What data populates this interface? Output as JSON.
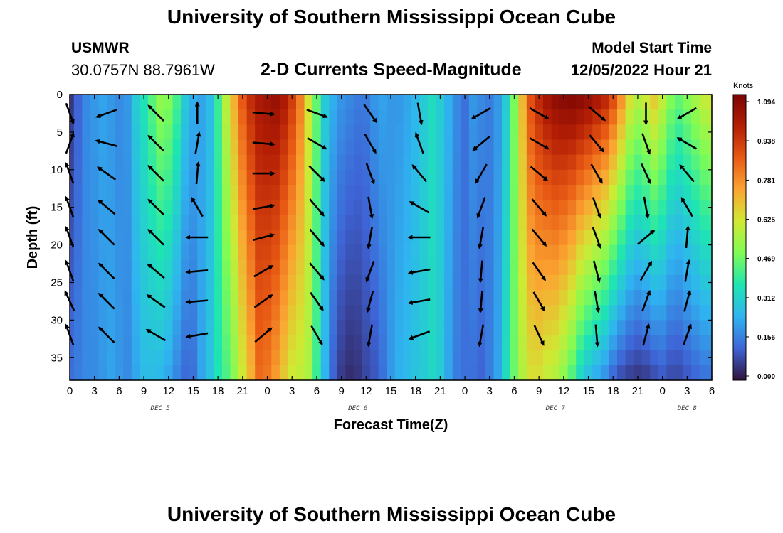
{
  "header": {
    "title": "University of Southern Mississippi Ocean Cube",
    "station_id": "USMWR",
    "station_coords": "30.0757N  88.7961W",
    "plot_title": "2-D Currents Speed-Magnitude",
    "model_start_label": "Model Start Time",
    "model_start_time": "12/05/2022 Hour 21"
  },
  "footer": {
    "title": "University of Southern Mississippi Ocean Cube"
  },
  "chart_data": {
    "type": "heatmap",
    "title": "2-D Currents Speed-Magnitude",
    "xlabel": "Forecast Time(Z)",
    "ylabel": "Depth (ft)",
    "xlim": [
      0,
      78
    ],
    "ylim": [
      38,
      0
    ],
    "x_ticks": [
      0,
      3,
      6,
      9,
      12,
      15,
      18,
      21,
      24,
      27,
      30,
      33,
      36,
      39,
      42,
      45,
      48,
      51,
      54,
      57,
      60,
      63,
      66,
      69,
      72,
      75,
      78
    ],
    "x_tick_labels": [
      "0",
      "3",
      "6",
      "9",
      "12",
      "15",
      "18",
      "21",
      "0",
      "3",
      "6",
      "9",
      "12",
      "15",
      "18",
      "21",
      "0",
      "3",
      "6",
      "9",
      "12",
      "15",
      "18",
      "21",
      "0",
      "3",
      "6"
    ],
    "y_ticks": [
      0,
      5,
      10,
      15,
      20,
      25,
      30,
      35
    ],
    "day_labels": [
      {
        "label": "DEC 5",
        "hour": 11
      },
      {
        "label": "DEC 6",
        "hour": 35
      },
      {
        "label": "DEC 7",
        "hour": 59
      },
      {
        "label": "DEC 8",
        "hour": 75
      }
    ],
    "colorbar": {
      "units": "Knots",
      "range": [
        0,
        1.094
      ],
      "ticks": [
        "1.094",
        "0.938",
        "0.781",
        "0.625",
        "0.469",
        "0.312",
        "0.156",
        "0.000"
      ],
      "tick_values": [
        1.094,
        0.938,
        0.781,
        0.625,
        0.469,
        0.312,
        0.156,
        0.0
      ],
      "colors": [
        "#30123b",
        "#3e64d6",
        "#2fb4f0",
        "#1ee5b2",
        "#7ffc55",
        "#d0e933",
        "#fba532",
        "#e85a14",
        "#b41e05",
        "#7a0403"
      ]
    },
    "speed_profile_hours": [
      0,
      1,
      2,
      3,
      4,
      5,
      6,
      7,
      8,
      9,
      10,
      11,
      12,
      13,
      14,
      15,
      16,
      17,
      18,
      19,
      20,
      21,
      22,
      23,
      24,
      25,
      26,
      27,
      28,
      29,
      30,
      31,
      32,
      33,
      34,
      35,
      36,
      37,
      38,
      39,
      40,
      41,
      42,
      43,
      44,
      45,
      46,
      47,
      48,
      49,
      50,
      51,
      52,
      53,
      54,
      55,
      56,
      57,
      58,
      59,
      60,
      61,
      62,
      63,
      64,
      65,
      66,
      67,
      68,
      69,
      70,
      71,
      72,
      73,
      74,
      75,
      76,
      77,
      78
    ],
    "speed_profile_surface": [
      0.05,
      0.12,
      0.18,
      0.2,
      0.22,
      0.2,
      0.18,
      0.2,
      0.3,
      0.36,
      0.44,
      0.52,
      0.5,
      0.42,
      0.3,
      0.24,
      0.22,
      0.26,
      0.4,
      0.58,
      0.72,
      0.86,
      0.95,
      1.0,
      1.02,
      1.04,
      1.0,
      0.92,
      0.8,
      0.62,
      0.45,
      0.3,
      0.24,
      0.2,
      0.18,
      0.16,
      0.16,
      0.2,
      0.22,
      0.2,
      0.2,
      0.22,
      0.25,
      0.3,
      0.34,
      0.3,
      0.24,
      0.18,
      0.14,
      0.2,
      0.18,
      0.16,
      0.2,
      0.3,
      0.48,
      0.7,
      0.88,
      0.96,
      1.02,
      1.06,
      1.08,
      1.09,
      1.08,
      1.06,
      1.02,
      0.98,
      0.9,
      0.78,
      0.64,
      0.58,
      0.62,
      0.68,
      0.6,
      0.5,
      0.46,
      0.5,
      0.55,
      0.6,
      0.62
    ],
    "speed_profile_bottom": [
      0.14,
      0.16,
      0.18,
      0.18,
      0.2,
      0.22,
      0.2,
      0.18,
      0.22,
      0.26,
      0.26,
      0.25,
      0.22,
      0.17,
      0.13,
      0.14,
      0.22,
      0.28,
      0.36,
      0.42,
      0.5,
      0.6,
      0.7,
      0.82,
      0.8,
      0.74,
      0.66,
      0.6,
      0.58,
      0.55,
      0.4,
      0.25,
      0.12,
      0.06,
      0.04,
      0.05,
      0.08,
      0.1,
      0.14,
      0.2,
      0.24,
      0.26,
      0.28,
      0.3,
      0.33,
      0.3,
      0.22,
      0.16,
      0.14,
      0.14,
      0.12,
      0.16,
      0.22,
      0.34,
      0.46,
      0.56,
      0.62,
      0.62,
      0.58,
      0.56,
      0.5,
      0.42,
      0.32,
      0.26,
      0.22,
      0.18,
      0.12,
      0.08,
      0.06,
      0.05,
      0.06,
      0.08,
      0.1,
      0.08,
      0.08,
      0.1,
      0.12,
      0.14,
      0.14
    ],
    "vector_columns": [
      {
        "hour": 0,
        "dirs": [
          160,
          20,
          -20,
          -20,
          -20,
          -20,
          -25,
          -20
        ]
      },
      {
        "hour": 4.5,
        "dirs": [
          -110,
          -75,
          -55,
          -50,
          -45,
          -45,
          -45,
          -45
        ]
      },
      {
        "hour": 10.5,
        "dirs": [
          -45,
          -45,
          -45,
          -45,
          -45,
          -50,
          -55,
          -60
        ]
      },
      {
        "hour": 15.5,
        "dirs": [
          0,
          10,
          5,
          -30,
          -90,
          -95,
          -95,
          -100
        ]
      },
      {
        "hour": 23.5,
        "dirs": [
          95,
          95,
          90,
          80,
          75,
          60,
          55,
          50
        ]
      },
      {
        "hour": 30,
        "dirs": [
          110,
          120,
          135,
          140,
          140,
          140,
          145,
          150
        ]
      },
      {
        "hour": 36.5,
        "dirs": [
          145,
          150,
          160,
          170,
          190,
          200,
          195,
          190
        ]
      },
      {
        "hour": 42.5,
        "dirs": [
          170,
          -20,
          -40,
          -60,
          -90,
          -100,
          -100,
          -110
        ]
      },
      {
        "hour": 50,
        "dirs": [
          -120,
          -130,
          -150,
          -160,
          -170,
          -175,
          -175,
          -170
        ]
      },
      {
        "hour": 57,
        "dirs": [
          120,
          120,
          130,
          140,
          140,
          145,
          150,
          155
        ]
      },
      {
        "hour": 64,
        "dirs": [
          130,
          140,
          150,
          160,
          160,
          165,
          170,
          175
        ]
      },
      {
        "hour": 70,
        "dirs": [
          180,
          160,
          155,
          170,
          50,
          30,
          20,
          15
        ]
      },
      {
        "hour": 75,
        "dirs": [
          -120,
          -60,
          -40,
          -30,
          5,
          10,
          15,
          20
        ]
      }
    ]
  }
}
